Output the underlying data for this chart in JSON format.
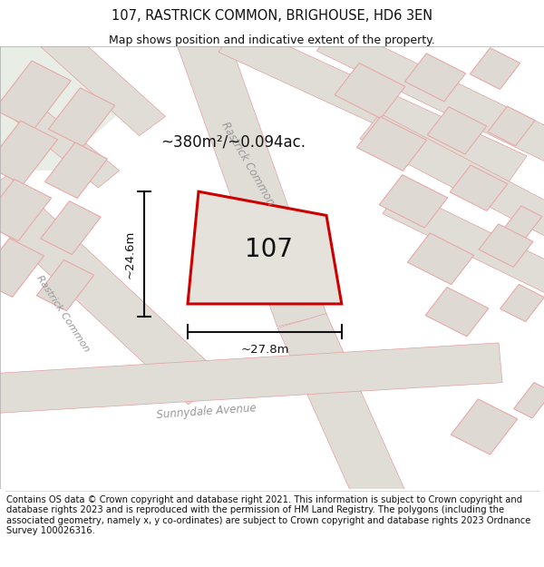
{
  "title": "107, RASTRICK COMMON, BRIGHOUSE, HD6 3EN",
  "subtitle": "Map shows position and indicative extent of the property.",
  "area_label": "~380m²/~0.094ac.",
  "property_number": "107",
  "dim_vertical": "~24.6m",
  "dim_horizontal": "~27.8m",
  "street_rastrick_upper": "Rastrick Common",
  "street_rastrick_left": "Rastrick Common",
  "street_sunnydale": "Sunnydale Avenue",
  "footer": "Contains OS data © Crown copyright and database right 2021. This information is subject to Crown copyright and database rights 2023 and is reproduced with the permission of HM Land Registry. The polygons (including the associated geometry, namely x, y co-ordinates) are subject to Crown copyright and database rights 2023 Ordnance Survey 100026316.",
  "bg_color": "#edeae3",
  "plot_edge_color": "#cc0000",
  "plot_fill_color": "#e5e2db",
  "building_fill": "#dedad3",
  "building_edge": "#e8a8a8",
  "road_fill": "#e0ddd6",
  "road_edge": "#e8a8a8",
  "dim_color": "#111111",
  "label_color": "#111111",
  "street_color": "#999999",
  "tl_green_color": "#e8ede5",
  "title_fontsize": 10.5,
  "subtitle_fontsize": 9,
  "footer_fontsize": 7.2,
  "prop_label_fontsize": 20,
  "area_label_fontsize": 12,
  "dim_fontsize": 9.5,
  "street_fontsize": 8.5
}
